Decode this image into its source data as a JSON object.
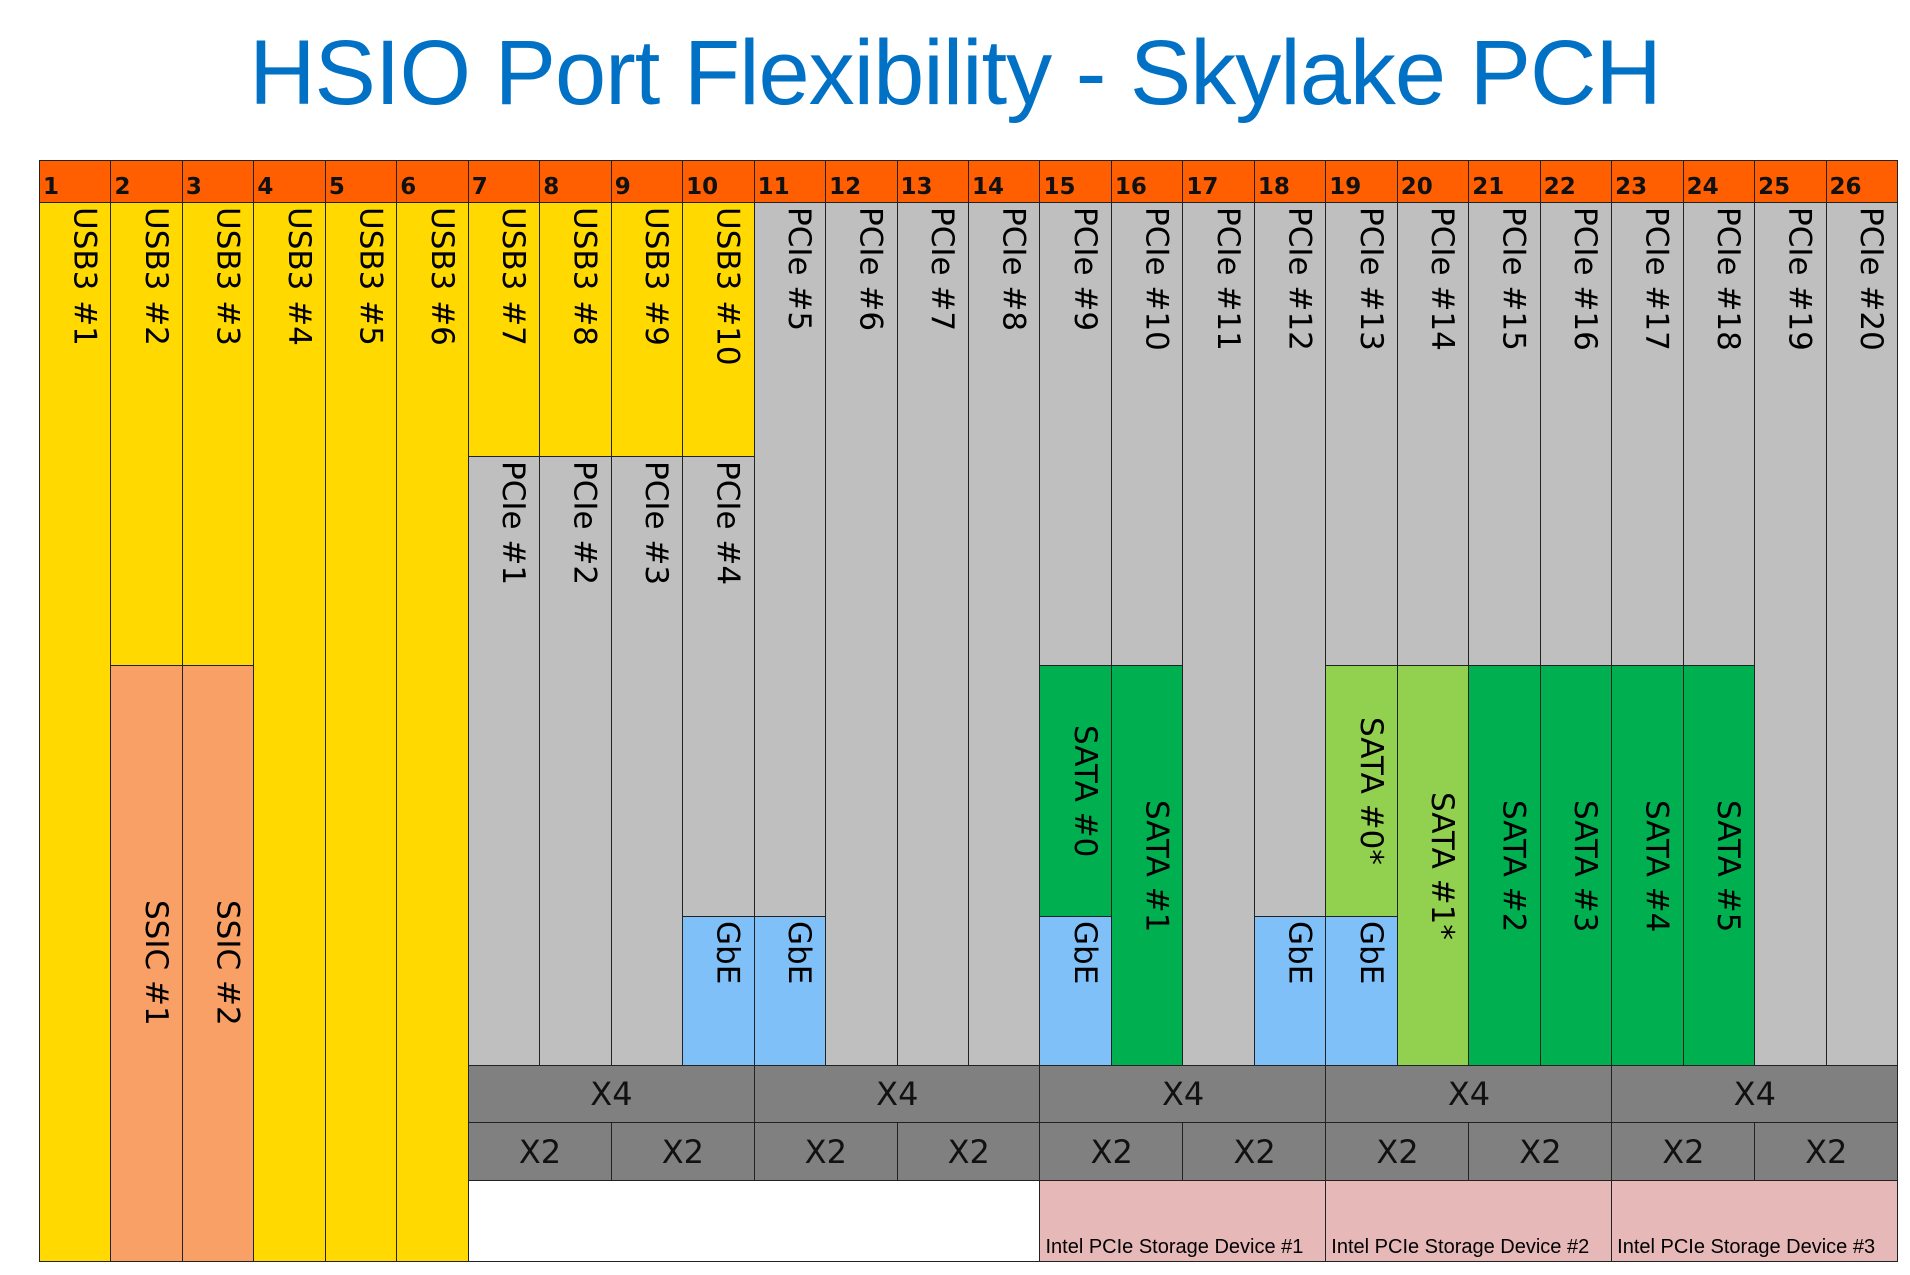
{
  "title": "HSIO Port Flexibility - Skylake PCH",
  "colors": {
    "title": "#0071C5",
    "header": "#FF5F00",
    "usb3": "#FFD900",
    "ssic": "#F9A066",
    "pcie": "#BFBFBF",
    "gbe": "#7FC0F8",
    "sata": "#00B050",
    "sata_alt": "#92D050",
    "link_width": "#808080",
    "storage": "#E6B8B7"
  },
  "lanes": [
    {
      "port": "1",
      "functions": [
        {
          "label": "USB3 #1",
          "type": "usb3"
        }
      ]
    },
    {
      "port": "2",
      "functions": [
        {
          "label": "USB3 #2",
          "type": "usb3"
        },
        {
          "label": "SSIC #1",
          "type": "ssic"
        }
      ]
    },
    {
      "port": "3",
      "functions": [
        {
          "label": "USB3 #3",
          "type": "usb3"
        },
        {
          "label": "SSIC #2",
          "type": "ssic"
        }
      ]
    },
    {
      "port": "4",
      "functions": [
        {
          "label": "USB3 #4",
          "type": "usb3"
        }
      ]
    },
    {
      "port": "5",
      "functions": [
        {
          "label": "USB3 #5",
          "type": "usb3"
        }
      ]
    },
    {
      "port": "6",
      "functions": [
        {
          "label": "USB3 #6",
          "type": "usb3"
        }
      ]
    },
    {
      "port": "7",
      "functions": [
        {
          "label": "USB3 #7",
          "type": "usb3"
        },
        {
          "label": "PCIe #1",
          "type": "pcie"
        }
      ]
    },
    {
      "port": "8",
      "functions": [
        {
          "label": "USB3 #8",
          "type": "usb3"
        },
        {
          "label": "PCIe #2",
          "type": "pcie"
        }
      ]
    },
    {
      "port": "9",
      "functions": [
        {
          "label": "USB3 #9",
          "type": "usb3"
        },
        {
          "label": "PCIe #3",
          "type": "pcie"
        }
      ]
    },
    {
      "port": "10",
      "functions": [
        {
          "label": "USB3 #10",
          "type": "usb3"
        },
        {
          "label": "PCIe #4",
          "type": "pcie"
        },
        {
          "label": "GbE",
          "type": "gbe"
        }
      ]
    },
    {
      "port": "11",
      "functions": [
        {
          "label": "PCIe #5",
          "type": "pcie"
        },
        {
          "label": "GbE",
          "type": "gbe"
        }
      ]
    },
    {
      "port": "12",
      "functions": [
        {
          "label": "PCIe #6",
          "type": "pcie"
        }
      ]
    },
    {
      "port": "13",
      "functions": [
        {
          "label": "PCIe #7",
          "type": "pcie"
        }
      ]
    },
    {
      "port": "14",
      "functions": [
        {
          "label": "PCIe #8",
          "type": "pcie"
        }
      ]
    },
    {
      "port": "15",
      "functions": [
        {
          "label": "PCIe #9",
          "type": "pcie"
        },
        {
          "label": "SATA #0",
          "type": "sata"
        },
        {
          "label": "GbE",
          "type": "gbe"
        }
      ]
    },
    {
      "port": "16",
      "functions": [
        {
          "label": "PCIe #10",
          "type": "pcie"
        },
        {
          "label": "SATA #1",
          "type": "sata"
        }
      ]
    },
    {
      "port": "17",
      "functions": [
        {
          "label": "PCIe #11",
          "type": "pcie"
        }
      ]
    },
    {
      "port": "18",
      "functions": [
        {
          "label": "PCIe #12",
          "type": "pcie"
        },
        {
          "label": "GbE",
          "type": "gbe"
        }
      ]
    },
    {
      "port": "19",
      "functions": [
        {
          "label": "PCIe #13",
          "type": "pcie"
        },
        {
          "label": "SATA #0*",
          "type": "sata-alt"
        },
        {
          "label": "GbE",
          "type": "gbe"
        }
      ]
    },
    {
      "port": "20",
      "functions": [
        {
          "label": "PCIe #14",
          "type": "pcie"
        },
        {
          "label": "SATA #1*",
          "type": "sata-alt"
        }
      ]
    },
    {
      "port": "21",
      "functions": [
        {
          "label": "PCIe #15",
          "type": "pcie"
        },
        {
          "label": "SATA #2",
          "type": "sata"
        }
      ]
    },
    {
      "port": "22",
      "functions": [
        {
          "label": "PCIe #16",
          "type": "pcie"
        },
        {
          "label": "SATA #3",
          "type": "sata"
        }
      ]
    },
    {
      "port": "23",
      "functions": [
        {
          "label": "PCIe #17",
          "type": "pcie"
        },
        {
          "label": "SATA #4",
          "type": "sata"
        }
      ]
    },
    {
      "port": "24",
      "functions": [
        {
          "label": "PCIe #18",
          "type": "pcie"
        },
        {
          "label": "SATA #5",
          "type": "sata"
        }
      ]
    },
    {
      "port": "25",
      "functions": [
        {
          "label": "PCIe #19",
          "type": "pcie"
        }
      ]
    },
    {
      "port": "26",
      "functions": [
        {
          "label": "PCIe #20",
          "type": "pcie"
        }
      ]
    }
  ],
  "x4_groups": [
    "X4",
    "X4",
    "X4",
    "X4",
    "X4"
  ],
  "x2_groups": [
    "X2",
    "X2",
    "X2",
    "X2",
    "X2",
    "X2",
    "X2",
    "X2",
    "X2",
    "X2"
  ],
  "storage_devices": [
    "Intel PCIe Storage Device #1",
    "Intel PCIe Storage Device #2",
    "Intel PCIe Storage Device #3"
  ]
}
